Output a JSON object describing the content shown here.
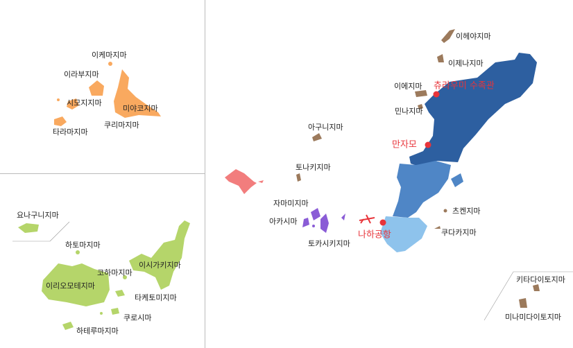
{
  "miyako_islands": {
    "labels": [
      "이케마지마",
      "이라부지마",
      "시모지지마",
      "미야코지마",
      "쿠리마지마",
      "타라마지마"
    ]
  },
  "yaeyama_islands": {
    "labels": [
      "요나구니지마",
      "하토마지마",
      "이시가키지마",
      "코하마지마",
      "이리오모테지마",
      "타케토미지마",
      "쿠로시마",
      "하테루마지마"
    ]
  },
  "okinawa_main": {
    "islands": [
      "이헤야지마",
      "이제나지마",
      "이에지마",
      "민나지마",
      "아구니지마",
      "토나키지마",
      "자마미지마",
      "아카시마",
      "토카시키지마",
      "츠켄지마",
      "쿠다카지마"
    ],
    "landmarks": [
      "츄라우미 수족관",
      "만자모",
      "나하공항"
    ]
  },
  "daito_islands": {
    "labels": [
      "키타다이토지마",
      "미나미다이토지마"
    ]
  }
}
